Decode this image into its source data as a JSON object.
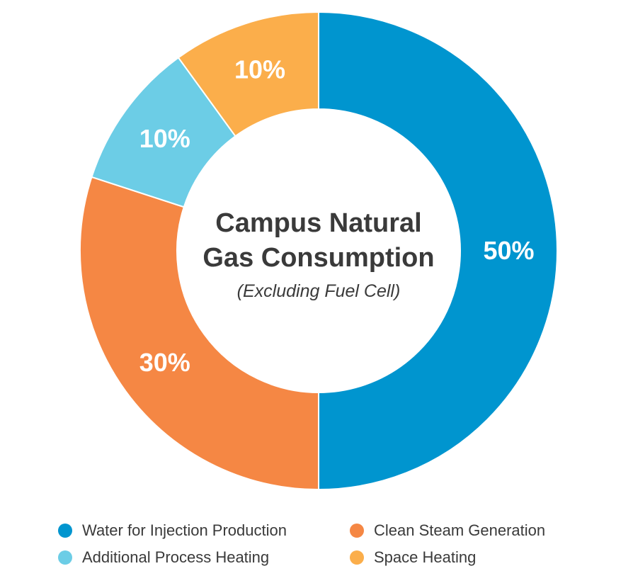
{
  "chart_data": {
    "type": "pie",
    "title": "Campus Natural Gas Consumption",
    "subtitle": "(Excluding Fuel Cell)",
    "slices": [
      {
        "label": "Water for Injection Production",
        "value": 50,
        "display": "50%",
        "color": "#0095cf"
      },
      {
        "label": "Clean Steam Generation",
        "value": 30,
        "display": "30%",
        "color": "#f58744"
      },
      {
        "label": "Additional Process Heating",
        "value": 10,
        "display": "10%",
        "color": "#6ccde6"
      },
      {
        "label": "Space Heating",
        "value": 10,
        "display": "10%",
        "color": "#fbae4b"
      }
    ],
    "legend_position": "bottom"
  },
  "legend": {
    "items": [
      {
        "label": "Water for Injection Production",
        "color": "#0095cf"
      },
      {
        "label": "Clean Steam Generation",
        "color": "#f58744"
      },
      {
        "label": "Additional Process Heating",
        "color": "#6ccde6"
      },
      {
        "label": "Space Heating",
        "color": "#fbae4b"
      }
    ]
  }
}
